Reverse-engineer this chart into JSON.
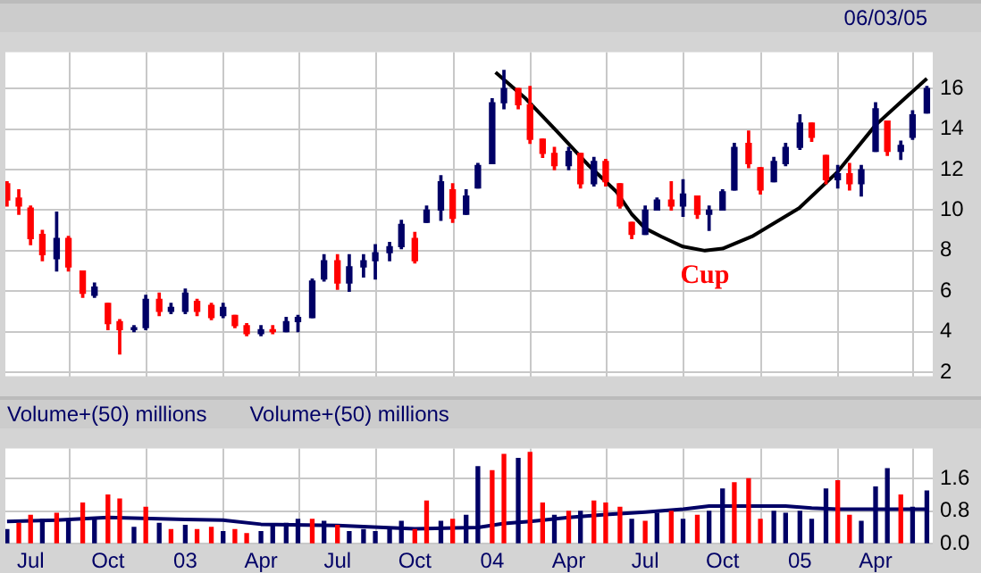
{
  "chart_data": [
    {
      "type": "candlestick",
      "annotations": [
        "06/03/05",
        {
          "text": "Cup",
          "x": "2004-09-10",
          "y": 8.0
        }
      ],
      "x": [
        "2002-06-03",
        "2002-06-17",
        "2002-07-01",
        "2002-07-15",
        "2002-08-01",
        "2002-08-15",
        "2002-09-01",
        "2002-09-15",
        "2002-10-01",
        "2002-10-15",
        "2002-11-01",
        "2002-11-15",
        "2002-12-01",
        "2002-12-15",
        "2003-01-01",
        "2003-01-15",
        "2003-02-01",
        "2003-02-15",
        "2003-03-01",
        "2003-03-15",
        "2003-04-01",
        "2003-04-15",
        "2003-05-01",
        "2003-05-15",
        "2003-06-01",
        "2003-06-15",
        "2003-07-01",
        "2003-07-15",
        "2003-08-01",
        "2003-08-15",
        "2003-09-01",
        "2003-09-15",
        "2003-10-01",
        "2003-10-15",
        "2003-11-01",
        "2003-11-15",
        "2003-12-01",
        "2003-12-15",
        "2004-01-01",
        "2004-01-15",
        "2004-02-01",
        "2004-02-15",
        "2004-03-01",
        "2004-03-15",
        "2004-04-01",
        "2004-04-15",
        "2004-05-01",
        "2004-05-15",
        "2004-06-01",
        "2004-06-15",
        "2004-07-01",
        "2004-07-15",
        "2004-08-01",
        "2004-08-15",
        "2004-09-01",
        "2004-09-15",
        "2004-10-01",
        "2004-10-15",
        "2004-11-01",
        "2004-11-15",
        "2004-12-01",
        "2004-12-15",
        "2005-01-01",
        "2005-01-15",
        "2005-02-01",
        "2005-02-15",
        "2005-03-01",
        "2005-03-15",
        "2005-04-01",
        "2005-04-15",
        "2005-05-01",
        "2005-05-15",
        "2005-06-01"
      ],
      "ohlc": [
        [
          11.3,
          11.4,
          10.2,
          10.5
        ],
        [
          10.6,
          11.0,
          9.8,
          10.2
        ],
        [
          10.1,
          10.2,
          8.3,
          8.6
        ],
        [
          8.8,
          9.0,
          7.5,
          7.8
        ],
        [
          7.6,
          9.9,
          7.0,
          8.6
        ],
        [
          8.6,
          8.7,
          7.0,
          7.2
        ],
        [
          7.0,
          7.0,
          5.7,
          5.9
        ],
        [
          5.8,
          6.4,
          5.7,
          6.2
        ],
        [
          5.4,
          5.4,
          4.1,
          4.4
        ],
        [
          4.5,
          4.6,
          2.9,
          4.1
        ],
        [
          4.1,
          4.3,
          4.0,
          4.2
        ],
        [
          4.2,
          5.8,
          4.1,
          5.6
        ],
        [
          5.6,
          5.9,
          4.8,
          5.0
        ],
        [
          5.0,
          5.4,
          4.9,
          5.2
        ],
        [
          5.0,
          6.1,
          4.9,
          5.9
        ],
        [
          5.5,
          5.6,
          4.8,
          5.0
        ],
        [
          5.3,
          5.4,
          4.6,
          4.7
        ],
        [
          4.8,
          5.4,
          4.7,
          5.2
        ],
        [
          4.8,
          4.8,
          4.2,
          4.3
        ],
        [
          4.3,
          4.4,
          3.8,
          3.9
        ],
        [
          3.9,
          4.3,
          3.8,
          4.1
        ],
        [
          4.1,
          4.3,
          3.9,
          4.0
        ],
        [
          4.0,
          4.7,
          4.0,
          4.5
        ],
        [
          4.5,
          4.8,
          4.0,
          4.7
        ],
        [
          4.7,
          6.6,
          4.7,
          6.5
        ],
        [
          6.6,
          7.8,
          6.5,
          7.5
        ],
        [
          7.5,
          7.8,
          6.1,
          6.4
        ],
        [
          6.4,
          7.8,
          6.0,
          7.2
        ],
        [
          7.2,
          7.8,
          6.7,
          7.5
        ],
        [
          7.5,
          8.3,
          6.6,
          7.9
        ],
        [
          7.9,
          8.4,
          7.5,
          8.2
        ],
        [
          8.2,
          9.5,
          8.1,
          9.3
        ],
        [
          8.6,
          8.9,
          7.4,
          7.5
        ],
        [
          9.4,
          10.2,
          9.4,
          10.0
        ],
        [
          10.0,
          11.7,
          9.5,
          11.4
        ],
        [
          11.0,
          11.3,
          9.4,
          9.6
        ],
        [
          9.8,
          11.0,
          9.8,
          10.7
        ],
        [
          11.1,
          12.3,
          11.1,
          12.2
        ],
        [
          12.3,
          15.5,
          12.3,
          15.3
        ],
        [
          15.3,
          16.9,
          15.0,
          16.0
        ],
        [
          16.0,
          16.0,
          15.0,
          15.2
        ],
        [
          15.2,
          16.1,
          13.3,
          13.5
        ],
        [
          13.5,
          13.5,
          12.6,
          12.8
        ],
        [
          12.8,
          13.1,
          12.0,
          12.2
        ],
        [
          12.2,
          13.1,
          12.0,
          12.9
        ],
        [
          12.8,
          12.8,
          11.1,
          11.3
        ],
        [
          11.3,
          12.6,
          11.2,
          12.4
        ],
        [
          12.4,
          12.5,
          11.2,
          11.4
        ],
        [
          11.3,
          11.3,
          10.1,
          10.2
        ],
        [
          9.4,
          9.4,
          8.6,
          8.8
        ],
        [
          8.8,
          10.2,
          8.8,
          10.0
        ],
        [
          10.0,
          10.6,
          10.0,
          10.5
        ],
        [
          10.5,
          11.4,
          10.0,
          10.2
        ],
        [
          10.2,
          11.5,
          9.7,
          10.8
        ],
        [
          10.7,
          10.7,
          9.6,
          9.8
        ],
        [
          9.8,
          10.2,
          9.0,
          10.0
        ],
        [
          10.0,
          11.0,
          10.0,
          10.9
        ],
        [
          11.0,
          13.3,
          11.0,
          13.1
        ],
        [
          13.3,
          13.9,
          12.1,
          12.3
        ],
        [
          12.1,
          12.1,
          10.8,
          11.0
        ],
        [
          11.4,
          12.6,
          11.4,
          12.4
        ],
        [
          12.3,
          13.3,
          12.2,
          13.1
        ],
        [
          13.1,
          14.7,
          13.0,
          14.3
        ],
        [
          14.3,
          14.3,
          13.4,
          13.6
        ],
        [
          12.7,
          12.7,
          11.3,
          11.5
        ],
        [
          11.5,
          12.2,
          11.1,
          11.8
        ],
        [
          11.8,
          12.3,
          11.0,
          11.3
        ],
        [
          11.3,
          12.2,
          10.7,
          12.0
        ],
        [
          12.9,
          15.3,
          12.9,
          15.0
        ],
        [
          14.4,
          14.4,
          12.7,
          12.9
        ],
        [
          12.9,
          13.4,
          12.5,
          13.2
        ],
        [
          13.6,
          14.9,
          13.5,
          14.7
        ],
        [
          14.8,
          16.1,
          14.8,
          16.0
        ]
      ],
      "colors": [
        "#ff0000",
        "#ff0000",
        "#ff0000",
        "#ff0000",
        "#000066",
        "#ff0000",
        "#ff0000",
        "#000066",
        "#ff0000",
        "#ff0000",
        "#000066",
        "#000066",
        "#ff0000",
        "#000066",
        "#000066",
        "#ff0000",
        "#ff0000",
        "#000066",
        "#ff0000",
        "#ff0000",
        "#000066",
        "#ff0000",
        "#000066",
        "#000066",
        "#000066",
        "#000066",
        "#ff0000",
        "#000066",
        "#000066",
        "#000066",
        "#000066",
        "#000066",
        "#ff0000",
        "#000066",
        "#000066",
        "#ff0000",
        "#000066",
        "#000066",
        "#000066",
        "#000066",
        "#ff0000",
        "#ff0000",
        "#ff0000",
        "#ff0000",
        "#000066",
        "#ff0000",
        "#000066",
        "#ff0000",
        "#ff0000",
        "#ff0000",
        "#000066",
        "#000066",
        "#ff0000",
        "#000066",
        "#ff0000",
        "#000066",
        "#000066",
        "#000066",
        "#ff0000",
        "#ff0000",
        "#000066",
        "#000066",
        "#000066",
        "#ff0000",
        "#ff0000",
        "#000066",
        "#ff0000",
        "#000066",
        "#000066",
        "#ff0000",
        "#000066",
        "#000066",
        "#000066"
      ],
      "series": [
        {
          "type": "line",
          "color": "#000000",
          "x": [
            "2004-01-05",
            "2004-02-10",
            "2004-03-20",
            "2004-04-25",
            "2004-05-28",
            "2004-06-15",
            "2004-07-01",
            "2004-07-20",
            "2004-08-15",
            "2004-09-10",
            "2004-10-01",
            "2004-11-05",
            "2004-12-31",
            "2005-02-15",
            "2005-04-01",
            "2005-06-01"
          ],
          "values": [
            16.8,
            15.5,
            13.8,
            12.2,
            10.9,
            9.8,
            9.1,
            8.7,
            8.2,
            8.0,
            8.1,
            8.7,
            10.1,
            11.9,
            14.2,
            16.5
          ]
        }
      ],
      "xlim": [
        "2002-06-01",
        "2005-06-08"
      ],
      "xticks": [
        {
          "value": "2002-07-01",
          "label": null
        },
        {
          "value": "2002-10-01",
          "label": null
        },
        {
          "value": "2003-01-01",
          "label": null
        },
        {
          "value": "2003-04-01",
          "label": null
        },
        {
          "value": "2003-07-01",
          "label": null
        },
        {
          "value": "2003-10-01",
          "label": null
        },
        {
          "value": "2004-01-01",
          "label": null
        },
        {
          "value": "2004-04-01",
          "label": null
        },
        {
          "value": "2004-07-01",
          "label": null
        },
        {
          "value": "2004-10-01",
          "label": null
        },
        {
          "value": "2005-01-01",
          "label": null
        },
        {
          "value": "2005-04-01",
          "label": null
        }
      ],
      "ylim": [
        1.8,
        17.8
      ],
      "yticks": [
        2,
        4,
        6,
        8,
        10,
        12,
        14,
        16
      ],
      "grid": true,
      "tick_labels": "y"
    },
    {
      "type": "bar",
      "annotations": [
        "Volume+(50) millions",
        "Volume+(50) millions"
      ],
      "x": [
        "2002-06-03",
        "2002-06-17",
        "2002-07-01",
        "2002-07-15",
        "2002-08-01",
        "2002-08-15",
        "2002-09-01",
        "2002-09-15",
        "2002-10-01",
        "2002-10-15",
        "2002-11-01",
        "2002-11-15",
        "2002-12-01",
        "2002-12-15",
        "2003-01-01",
        "2003-01-15",
        "2003-02-01",
        "2003-02-15",
        "2003-03-01",
        "2003-03-15",
        "2003-04-01",
        "2003-04-15",
        "2003-05-01",
        "2003-05-15",
        "2003-06-01",
        "2003-06-15",
        "2003-07-01",
        "2003-07-15",
        "2003-08-01",
        "2003-08-15",
        "2003-09-01",
        "2003-09-15",
        "2003-10-01",
        "2003-10-15",
        "2003-11-01",
        "2003-11-15",
        "2003-12-01",
        "2003-12-15",
        "2004-01-01",
        "2004-01-15",
        "2004-02-01",
        "2004-02-15",
        "2004-03-01",
        "2004-03-15",
        "2004-04-01",
        "2004-04-15",
        "2004-05-01",
        "2004-05-15",
        "2004-06-01",
        "2004-06-15",
        "2004-07-01",
        "2004-07-15",
        "2004-08-01",
        "2004-08-15",
        "2004-09-01",
        "2004-09-15",
        "2004-10-01",
        "2004-10-15",
        "2004-11-01",
        "2004-11-15",
        "2004-12-01",
        "2004-12-15",
        "2005-01-01",
        "2005-01-15",
        "2005-02-01",
        "2005-02-15",
        "2005-03-01",
        "2005-03-15",
        "2005-04-01",
        "2005-04-15",
        "2005-05-01",
        "2005-05-15",
        "2005-06-01"
      ],
      "series": [
        {
          "type": "bar",
          "values": [
            0.35,
            0.5,
            0.7,
            0.6,
            0.75,
            0.6,
            1.0,
            0.65,
            1.2,
            1.1,
            0.4,
            0.9,
            0.5,
            0.35,
            0.45,
            0.35,
            0.4,
            0.3,
            0.35,
            0.25,
            0.3,
            0.45,
            0.5,
            0.6,
            0.6,
            0.55,
            0.45,
            0.3,
            0.35,
            0.3,
            0.4,
            0.55,
            0.35,
            1.05,
            0.55,
            0.6,
            0.7,
            1.9,
            1.8,
            2.2,
            2.1,
            2.25,
            1.0,
            0.7,
            0.8,
            0.8,
            1.05,
            1.0,
            0.9,
            0.6,
            0.55,
            0.75,
            0.8,
            0.6,
            0.7,
            0.8,
            1.35,
            1.5,
            1.6,
            0.6,
            0.8,
            0.75,
            0.8,
            0.6,
            1.35,
            1.55,
            0.7,
            0.55,
            1.4,
            1.85,
            1.2,
            0.9,
            1.3
          ],
          "colors": [
            "#000066",
            "#ff0000",
            "#ff0000",
            "#000066",
            "#ff0000",
            "#000066",
            "#ff0000",
            "#000066",
            "#ff0000",
            "#ff0000",
            "#000066",
            "#ff0000",
            "#000066",
            "#ff0000",
            "#000066",
            "#ff0000",
            "#ff0000",
            "#000066",
            "#ff0000",
            "#ff0000",
            "#000066",
            "#000066",
            "#000066",
            "#000066",
            "#ff0000",
            "#000066",
            "#ff0000",
            "#000066",
            "#000066",
            "#000066",
            "#000066",
            "#000066",
            "#ff0000",
            "#ff0000",
            "#000066",
            "#ff0000",
            "#000066",
            "#000066",
            "#ff0000",
            "#ff0000",
            "#000066",
            "#ff0000",
            "#ff0000",
            "#000066",
            "#ff0000",
            "#000066",
            "#ff0000",
            "#ff0000",
            "#ff0000",
            "#000066",
            "#ff0000",
            "#000066",
            "#ff0000",
            "#000066",
            "#ff0000",
            "#000066",
            "#000066",
            "#ff0000",
            "#ff0000",
            "#ff0000",
            "#000066",
            "#000066",
            "#000066",
            "#000066",
            "#000066",
            "#ff0000",
            "#ff0000",
            "#000066",
            "#000066",
            "#000066",
            "#ff0000",
            "#000066",
            "#000066"
          ]
        },
        {
          "type": "line",
          "color": "#000066",
          "x": [
            "2002-06-03",
            "2002-08-01",
            "2002-10-01",
            "2003-01-01",
            "2003-02-15",
            "2003-04-01",
            "2003-07-01",
            "2003-10-01",
            "2003-12-15",
            "2004-01-15",
            "2004-02-15",
            "2004-04-01",
            "2004-05-15",
            "2004-07-01",
            "2004-08-15",
            "2004-09-15",
            "2004-12-15",
            "2005-01-15",
            "2005-02-15",
            "2005-04-01",
            "2005-06-01"
          ],
          "values": [
            0.55,
            0.58,
            0.65,
            0.6,
            0.58,
            0.48,
            0.45,
            0.37,
            0.4,
            0.5,
            0.55,
            0.65,
            0.72,
            0.78,
            0.85,
            0.93,
            0.93,
            0.88,
            0.85,
            0.85,
            0.85
          ]
        }
      ],
      "xlim": [
        "2002-06-01",
        "2005-06-08"
      ],
      "xticks": [
        {
          "value": "2002-07-01",
          "label": "Jul"
        },
        {
          "value": "2002-10-01",
          "label": "Oct"
        },
        {
          "value": "2003-01-01",
          "label": "03"
        },
        {
          "value": "2003-04-01",
          "label": "Apr"
        },
        {
          "value": "2003-07-01",
          "label": "Jul"
        },
        {
          "value": "2003-10-01",
          "label": "Oct"
        },
        {
          "value": "2004-01-01",
          "label": "04"
        },
        {
          "value": "2004-04-01",
          "label": "Apr"
        },
        {
          "value": "2004-07-01",
          "label": "Jul"
        },
        {
          "value": "2004-10-01",
          "label": "Oct"
        },
        {
          "value": "2005-01-01",
          "label": "05"
        },
        {
          "value": "2005-04-01",
          "label": "Apr"
        }
      ],
      "ylim": [
        0,
        2.35
      ],
      "yticks": [
        {
          "value": 0,
          "label": "0.0"
        },
        {
          "value": 0.8,
          "label": "0.8"
        },
        {
          "value": 1.6,
          "label": "1.6"
        }
      ],
      "grid": true
    }
  ]
}
